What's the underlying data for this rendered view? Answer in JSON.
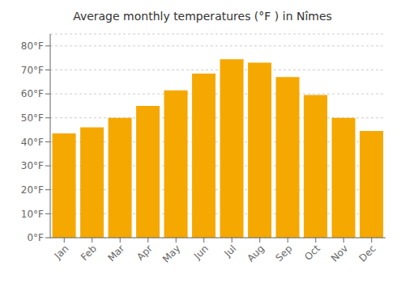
{
  "chart_data": {
    "type": "bar",
    "title": "Average monthly temperatures (°F ) in Nîmes",
    "categories": [
      "Jan",
      "Feb",
      "Mar",
      "Apr",
      "May",
      "Jun",
      "Jul",
      "Aug",
      "Sep",
      "Oct",
      "Nov",
      "Dec"
    ],
    "values": [
      43.5,
      46.0,
      50.0,
      55.0,
      61.5,
      68.5,
      74.5,
      73.0,
      67.0,
      59.5,
      50.0,
      44.5
    ],
    "color": "#F5A800",
    "ylim": [
      0,
      85
    ],
    "yticks": [
      {
        "value": 0,
        "label": "0°F"
      },
      {
        "value": 10,
        "label": "10°F"
      },
      {
        "value": 20,
        "label": "20°F"
      },
      {
        "value": 30,
        "label": "30°F"
      },
      {
        "value": 40,
        "label": "40°F"
      },
      {
        "value": 50,
        "label": "50°F"
      },
      {
        "value": 60,
        "label": "60°F"
      },
      {
        "value": 70,
        "label": "70°F"
      },
      {
        "value": 80,
        "label": "80°F"
      }
    ],
    "grid": true
  }
}
